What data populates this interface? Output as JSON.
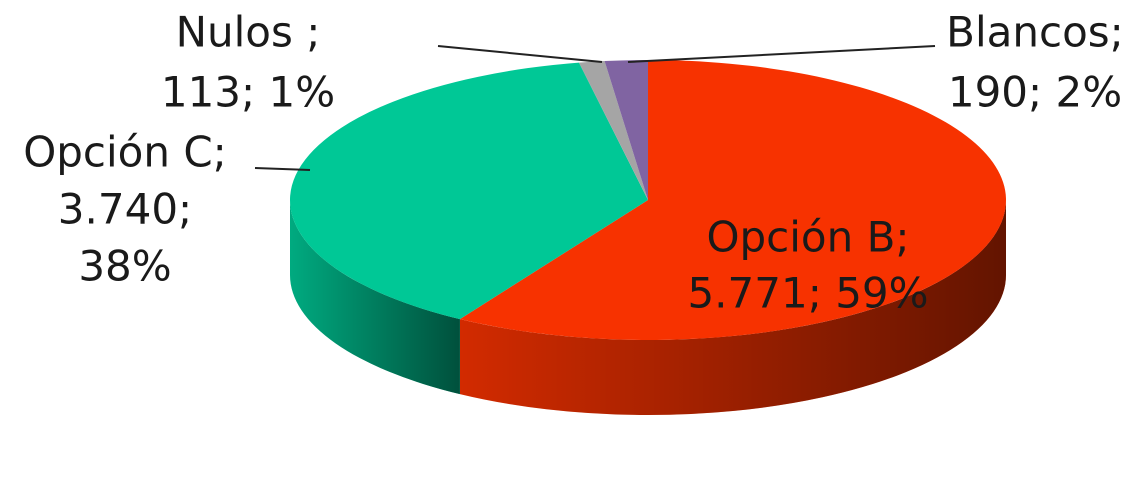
{
  "chart_data": {
    "type": "pie3d",
    "labels": [
      [
        "Opción B;",
        "5.771; 59%"
      ],
      [
        "Opción C;",
        "3.740;",
        "38%"
      ],
      [
        "Nulos ;",
        "113; 1%"
      ],
      [
        "Blancos;",
        "190; 2%"
      ]
    ],
    "values": [
      5771,
      3740,
      113,
      190
    ],
    "colors": [
      "#f73200",
      "#00c896",
      "#a5a5a5",
      "#8064a2"
    ]
  }
}
